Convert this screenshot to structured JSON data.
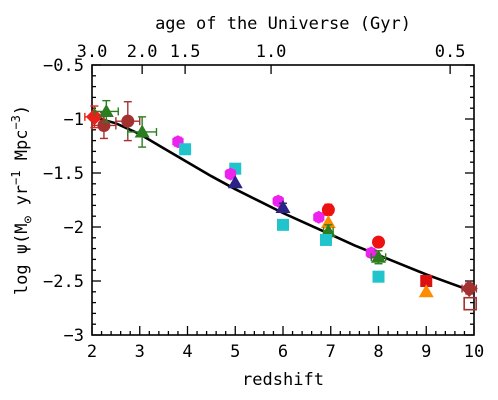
{
  "chart_data": {
    "type": "scatter",
    "xlabel": "redshift",
    "ylabel_parts": {
      "main": "log ψ(M",
      "sub": "⊙",
      "mid": " yr",
      "sup1": "−1",
      "mid2": " Mpc",
      "sup2": "−3",
      "end": ")"
    },
    "top_axis_label": "age of the Universe (Gyr)",
    "xlim": [
      2,
      10
    ],
    "ylim": [
      -3,
      -0.5
    ],
    "x_ticks": [
      2,
      3,
      4,
      5,
      6,
      7,
      8,
      9,
      10
    ],
    "x_tick_labels": [
      "2",
      "3",
      "4",
      "5",
      "6",
      "7",
      "8",
      "9",
      "10"
    ],
    "y_ticks": [
      -0.5,
      -1,
      -1.5,
      -2,
      -2.5,
      -3
    ],
    "y_tick_labels": [
      "−0.5",
      "−1",
      "−1.5",
      "−2",
      "−2.5",
      "−3"
    ],
    "top_ticks": [
      {
        "z": 2.0,
        "label": "3.0"
      },
      {
        "z": 3.05,
        "label": "2.0"
      },
      {
        "z": 3.95,
        "label": "1.5"
      },
      {
        "z": 5.75,
        "label": "1.0"
      },
      {
        "z": 9.5,
        "label": "0.5"
      }
    ],
    "curve": {
      "x": [
        2.0,
        2.5,
        3.0,
        3.5,
        4.0,
        4.5,
        5.0,
        5.5,
        6.0,
        6.5,
        7.0,
        7.5,
        8.0,
        8.5,
        9.0,
        9.5,
        10.0
      ],
      "y": [
        -0.98,
        -1.04,
        -1.14,
        -1.27,
        -1.4,
        -1.53,
        -1.65,
        -1.76,
        -1.87,
        -1.97,
        -2.07,
        -2.17,
        -2.26,
        -2.35,
        -2.44,
        -2.52,
        -2.6
      ]
    },
    "points": [
      {
        "shape": "diamond",
        "color": "#e8211c",
        "x": 2.05,
        "y": -0.98,
        "ex": 0.2,
        "eyl": 0.1,
        "eyh": 0.1
      },
      {
        "shape": "circle",
        "color": "#a3312f",
        "x": 2.25,
        "y": -1.06,
        "ex": 0.25,
        "eyl": 0.12,
        "eyh": 0.12
      },
      {
        "shape": "triangle",
        "color": "#2c7d1f",
        "x": 2.3,
        "y": -0.93,
        "ex": 0.25,
        "eyl": 0.1,
        "eyh": 0.1
      },
      {
        "shape": "circle",
        "color": "#a3312f",
        "x": 2.75,
        "y": -1.02,
        "ex": 0.25,
        "eyl": 0.18,
        "eyh": 0.18
      },
      {
        "shape": "triangle",
        "color": "#2c7d1f",
        "x": 3.05,
        "y": -1.12,
        "ex": 0.3,
        "eyl": 0.14,
        "eyh": 0.14
      },
      {
        "shape": "hexagon",
        "color": "#ee22ee",
        "x": 3.8,
        "y": -1.21,
        "ex": 0.0,
        "eyl": 0.04,
        "eyh": 0.04
      },
      {
        "shape": "square",
        "color": "#22c4cc",
        "x": 3.95,
        "y": -1.28,
        "ex": 0.1,
        "eyl": 0.0,
        "eyh": 0.0
      },
      {
        "shape": "square",
        "color": "#22c4cc",
        "x": 5.0,
        "y": -1.46,
        "ex": 0.0,
        "eyl": 0.0,
        "eyh": 0.0
      },
      {
        "shape": "hexagon",
        "color": "#ee22ee",
        "x": 4.9,
        "y": -1.51,
        "ex": 0.0,
        "eyl": 0.04,
        "eyh": 0.04
      },
      {
        "shape": "triangle",
        "color": "#2a2284",
        "x": 5.0,
        "y": -1.59,
        "ex": 0.0,
        "eyl": 0.0,
        "eyh": 0.0
      },
      {
        "shape": "hexagon",
        "color": "#ee22ee",
        "x": 5.9,
        "y": -1.76,
        "ex": 0.0,
        "eyl": 0.04,
        "eyh": 0.04
      },
      {
        "shape": "triangle",
        "color": "#2a2284",
        "x": 6.0,
        "y": -1.82,
        "ex": 0.0,
        "eyl": 0.04,
        "eyh": 0.04
      },
      {
        "shape": "square",
        "color": "#22c4cc",
        "x": 6.0,
        "y": -1.98,
        "ex": 0.0,
        "eyl": 0.0,
        "eyh": 0.0
      },
      {
        "shape": "hexagon",
        "color": "#ee22ee",
        "x": 6.75,
        "y": -1.91,
        "ex": 0.0,
        "eyl": 0.04,
        "eyh": 0.04
      },
      {
        "shape": "circle",
        "color": "#ee1111",
        "x": 6.95,
        "y": -1.84,
        "ex": 0.0,
        "eyl": 0.05,
        "eyh": 0.05
      },
      {
        "shape": "triangle",
        "color": "#ff8c00",
        "x": 6.95,
        "y": -1.96,
        "ex": 0.0,
        "eyl": 0.0,
        "eyh": 0.0
      },
      {
        "shape": "triangle",
        "color": "#2c7d1f",
        "x": 6.95,
        "y": -2.04,
        "ex": 0.1,
        "eyl": 0.06,
        "eyh": 0.06
      },
      {
        "shape": "square",
        "color": "#22c4cc",
        "x": 6.9,
        "y": -2.12,
        "ex": 0.0,
        "eyl": 0.0,
        "eyh": 0.0
      },
      {
        "shape": "circle",
        "color": "#ee1111",
        "x": 8.0,
        "y": -2.14,
        "ex": 0.0,
        "eyl": 0.04,
        "eyh": 0.04
      },
      {
        "shape": "hexagon",
        "color": "#ee22ee",
        "x": 7.85,
        "y": -2.24,
        "ex": 0.0,
        "eyl": 0.04,
        "eyh": 0.04
      },
      {
        "shape": "triangle",
        "color": "#2c7d1f",
        "x": 8.0,
        "y": -2.28,
        "ex": 0.15,
        "eyl": 0.06,
        "eyh": 0.06
      },
      {
        "shape": "square",
        "color": "#22c4cc",
        "x": 8.0,
        "y": -2.46,
        "ex": 0.0,
        "eyl": 0.0,
        "eyh": 0.0
      },
      {
        "shape": "square",
        "color": "#dd1111",
        "x": 9.0,
        "y": -2.5,
        "ex": 0.0,
        "eyl": 0.0,
        "eyh": 0.0
      },
      {
        "shape": "triangle",
        "color": "#ff8c00",
        "x": 9.0,
        "y": -2.6,
        "ex": 0.0,
        "eyl": 0.0,
        "eyh": 0.0
      },
      {
        "shape": "diamond",
        "color": "#a3312f",
        "x": 9.9,
        "y": -2.57,
        "ex": 0.15,
        "eyl": 0.05,
        "eyh": 0.05
      },
      {
        "shape": "square-open",
        "color": "#a3312f",
        "x": 9.92,
        "y": -2.71,
        "ex": 0.0,
        "eyl": 0.0,
        "eyh": 0.0
      }
    ]
  }
}
